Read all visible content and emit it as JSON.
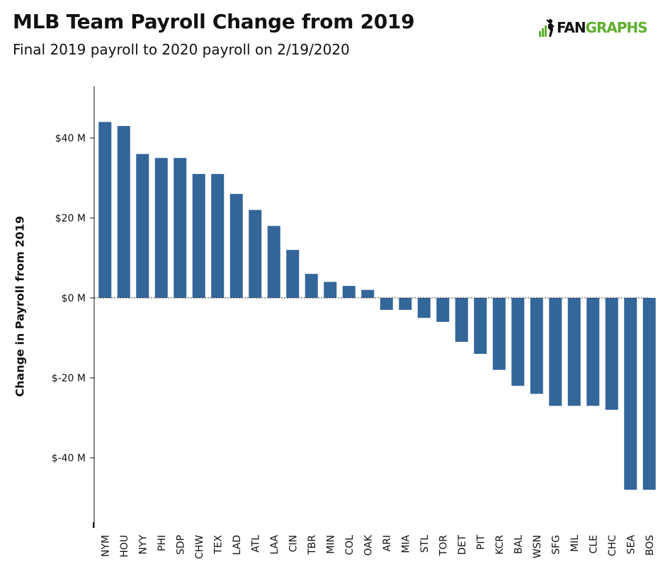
{
  "header": {
    "title": "MLB Team Payroll Change from 2019",
    "subtitle": "Final 2019 payroll to 2020 payroll on 2/19/2020"
  },
  "logo": {
    "text_left": "FAN",
    "text_right": "GRAPHS",
    "color_left": "#111111",
    "color_right": "#5fae2d"
  },
  "chart_data": {
    "type": "bar",
    "title": "MLB Team Payroll Change from 2019",
    "subtitle": "Final 2019 payroll to 2020 payroll on 2/19/2020",
    "xlabel": "",
    "ylabel": "Change in Payroll from 2019",
    "ylim": [
      -58,
      53
    ],
    "yticks": [
      40,
      20,
      0,
      -20,
      -40
    ],
    "ytick_labels": [
      "$40 M",
      "$20 M",
      "$0 M",
      "$-20 M",
      "$-40 M"
    ],
    "categories": [
      "NYM",
      "HOU",
      "NYY",
      "PHI",
      "SDP",
      "CHW",
      "TEX",
      "LAD",
      "ATL",
      "LAA",
      "CIN",
      "TBR",
      "MIN",
      "COL",
      "OAK",
      "ARI",
      "MIA",
      "STL",
      "TOR",
      "DET",
      "PIT",
      "KCR",
      "BAL",
      "WSN",
      "SFG",
      "MIL",
      "CLE",
      "CHC",
      "SEA",
      "BOS"
    ],
    "values": [
      44,
      43,
      36,
      35,
      35,
      31,
      31,
      26,
      22,
      18,
      12,
      6,
      4,
      3,
      2,
      -3,
      -3,
      -5,
      -6,
      -11,
      -14,
      -18,
      -22,
      -24,
      -27,
      -27,
      -27,
      -28,
      -48,
      -48
    ],
    "bar_color": "#336699",
    "zero_line": "dotted",
    "grid": false,
    "legend": "none"
  }
}
